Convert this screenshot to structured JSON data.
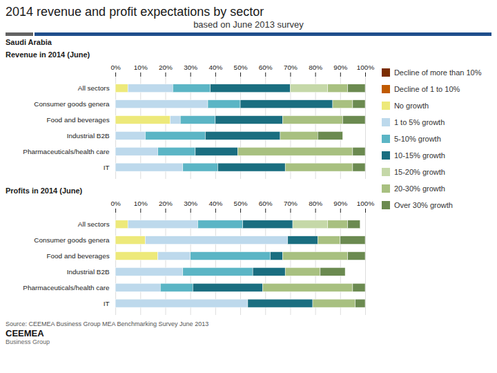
{
  "title": "2014 revenue and profit expectations by sector",
  "subtitle": "based on June 2013 survey",
  "annotations": [
    "Saudi Arabia",
    "Source: CEEMEA Business Group MEA Benchmarking Survey June 2013",
    "CEEMEA",
    "Business Group"
  ],
  "chart_data": [
    {
      "type": "bar",
      "title": "Revenue in 2014 (June)",
      "orientation": "horizontal",
      "stacked": true,
      "grid": true,
      "legend": "right",
      "categories": [
        "All sectors",
        "Consumer goods genera",
        "Food and beverages",
        "Industrial B2B",
        "Pharmaceuticals/health care",
        "IT"
      ],
      "xlim": [
        0,
        100
      ],
      "xticks": [
        {
          "value": 0,
          "label": "0%"
        },
        {
          "value": 10,
          "label": "10%"
        },
        {
          "value": 20,
          "label": "20%"
        },
        {
          "value": 30,
          "label": "30%"
        },
        {
          "value": 40,
          "label": "40%"
        },
        {
          "value": 50,
          "label": "50%"
        },
        {
          "value": 60,
          "label": "60%"
        },
        {
          "value": 70,
          "label": "70%"
        },
        {
          "value": 80,
          "label": "80%"
        },
        {
          "value": 90,
          "label": "90%"
        },
        {
          "value": 100,
          "label": "100%"
        }
      ],
      "series": [
        {
          "name": "Decline of more than 10%",
          "color": "#7B2D00",
          "values": [
            0,
            0,
            0,
            0,
            0,
            0
          ]
        },
        {
          "name": "Decline of 1 to 10%",
          "color": "#C05A00",
          "values": [
            0,
            0,
            0,
            0,
            0,
            0
          ]
        },
        {
          "name": "No growth",
          "color": "#EDE97A",
          "values": [
            5,
            0,
            22,
            0,
            0,
            0
          ]
        },
        {
          "name": "1 to 5% growth",
          "color": "#BDD9EC",
          "values": [
            18,
            37,
            4,
            12,
            17,
            27
          ]
        },
        {
          "name": "5-10% growth",
          "color": "#5BB5C5",
          "values": [
            15,
            13,
            14,
            24,
            15,
            14
          ]
        },
        {
          "name": "10-15% growth",
          "color": "#1A6E80",
          "values": [
            32,
            37,
            27,
            30,
            17,
            27
          ]
        },
        {
          "name": "15-20% growth",
          "color": "#C5D8A8",
          "values": [
            15,
            0,
            0,
            0,
            0,
            0
          ]
        },
        {
          "name": "20-30% growth",
          "color": "#A8C080",
          "values": [
            8,
            8,
            24,
            15,
            46,
            27
          ]
        },
        {
          "name": "Over 30% growth",
          "color": "#6B8A50",
          "values": [
            7,
            5,
            9,
            10,
            5,
            5
          ]
        }
      ]
    },
    {
      "type": "bar",
      "title": "Profits in 2014 (June)",
      "orientation": "horizontal",
      "stacked": true,
      "grid": true,
      "categories": [
        "All sectors",
        "Consumer goods genera",
        "Food and beverages",
        "Industrial B2B",
        "Pharmaceuticals/health care",
        "IT"
      ],
      "xlim": [
        0,
        100
      ],
      "xticks": [
        {
          "value": 0,
          "label": "0%"
        },
        {
          "value": 10,
          "label": "10%"
        },
        {
          "value": 20,
          "label": "20%"
        },
        {
          "value": 30,
          "label": "30%"
        },
        {
          "value": 40,
          "label": "40%"
        },
        {
          "value": 50,
          "label": "50%"
        },
        {
          "value": 60,
          "label": "60%"
        },
        {
          "value": 70,
          "label": "70%"
        },
        {
          "value": 80,
          "label": "80%"
        },
        {
          "value": 90,
          "label": "90%"
        },
        {
          "value": 100,
          "label": "100%"
        }
      ],
      "series": [
        {
          "name": "Decline of more than 10%",
          "color": "#7B2D00",
          "values": [
            0,
            0,
            0,
            0,
            0,
            0
          ]
        },
        {
          "name": "Decline of 1 to 10%",
          "color": "#C05A00",
          "values": [
            0,
            0,
            0,
            0,
            0,
            0
          ]
        },
        {
          "name": "No growth",
          "color": "#EDE97A",
          "values": [
            5,
            12,
            17,
            0,
            0,
            0
          ]
        },
        {
          "name": "1 to 5% growth",
          "color": "#BDD9EC",
          "values": [
            28,
            57,
            13,
            27,
            18,
            53
          ]
        },
        {
          "name": "5-10% growth",
          "color": "#5BB5C5",
          "values": [
            18,
            0,
            32,
            28,
            13,
            0
          ]
        },
        {
          "name": "10-15% growth",
          "color": "#1A6E80",
          "values": [
            20,
            12,
            5,
            13,
            28,
            26
          ]
        },
        {
          "name": "15-20% growth",
          "color": "#C5D8A8",
          "values": [
            14,
            0,
            0,
            0,
            0,
            0
          ]
        },
        {
          "name": "20-30% growth",
          "color": "#A8C080",
          "values": [
            8,
            9,
            26,
            14,
            36,
            17
          ]
        },
        {
          "name": "Over 30% growth",
          "color": "#6B8A50",
          "values": [
            5,
            10,
            7,
            10,
            5,
            4
          ]
        }
      ]
    }
  ]
}
